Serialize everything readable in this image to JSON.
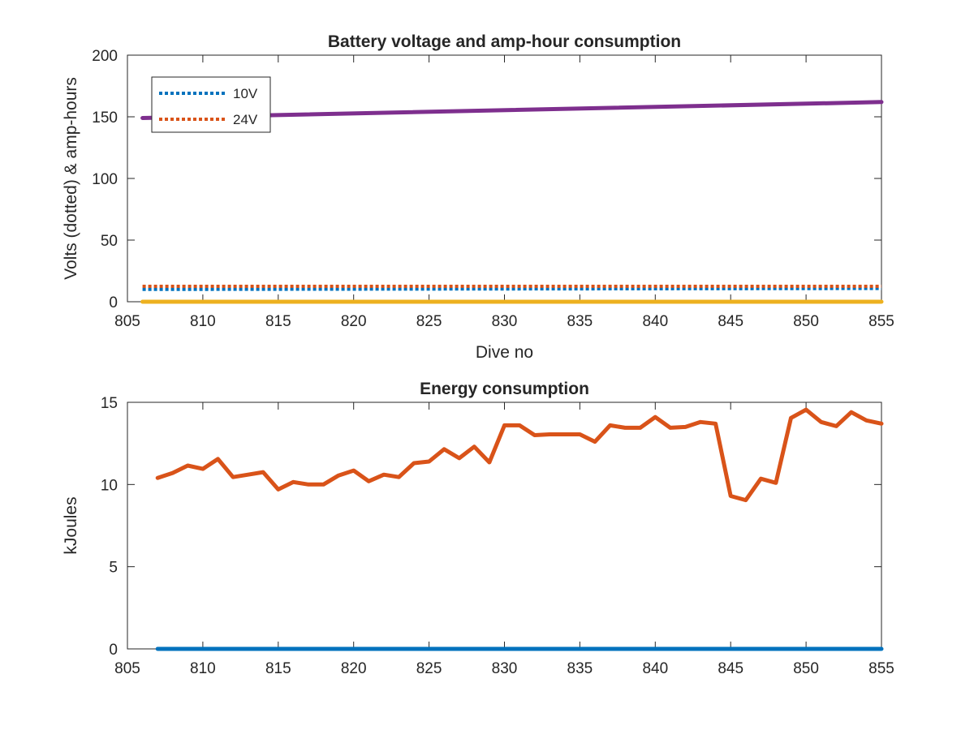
{
  "chart_data": [
    {
      "type": "line",
      "title": "Battery voltage and amp-hour consumption",
      "xlabel": "Dive no",
      "ylabel": "Volts (dotted) & amp-hours",
      "xlim": [
        805,
        855
      ],
      "ylim": [
        0,
        200
      ],
      "xticks": [
        805,
        810,
        815,
        820,
        825,
        830,
        835,
        840,
        845,
        850,
        855
      ],
      "yticks": [
        0,
        50,
        100,
        150,
        200
      ],
      "grid": false,
      "legend": {
        "placement": "top-left",
        "entries": [
          "10V",
          "24V"
        ]
      },
      "series": [
        {
          "name": "10V",
          "style": "dotted",
          "color": "#0072BD",
          "x": [
            806,
            855
          ],
          "y": [
            10.0,
            10.8
          ]
        },
        {
          "name": "24V",
          "style": "dotted",
          "color": "#D95319",
          "x": [
            806,
            855
          ],
          "y": [
            12.5,
            12.5
          ]
        },
        {
          "style": "solid",
          "color": "#7E2F8E",
          "x": [
            806,
            855
          ],
          "y": [
            149,
            162
          ]
        },
        {
          "style": "solid",
          "color": "#EDB120",
          "x": [
            806,
            855
          ],
          "y": [
            0,
            0
          ]
        }
      ]
    },
    {
      "type": "line",
      "title": "Energy consumption",
      "xlabel": "",
      "ylabel": "kJoules",
      "xlim": [
        805,
        855
      ],
      "ylim": [
        0,
        15
      ],
      "xticks": [
        805,
        810,
        815,
        820,
        825,
        830,
        835,
        840,
        845,
        850,
        855
      ],
      "yticks": [
        0,
        5,
        10,
        15
      ],
      "grid": false,
      "series": [
        {
          "style": "solid",
          "color": "#D95319",
          "x": [
            807,
            808,
            809,
            810,
            811,
            812,
            813,
            814,
            815,
            816,
            817,
            818,
            819,
            820,
            821,
            822,
            823,
            824,
            825,
            826,
            827,
            828,
            829,
            830,
            831,
            832,
            833,
            834,
            835,
            836,
            837,
            838,
            839,
            840,
            841,
            842,
            843,
            844,
            845,
            846,
            847,
            848,
            849,
            850,
            851,
            852,
            853,
            854,
            855
          ],
          "y": [
            10.4,
            10.7,
            11.15,
            10.95,
            11.55,
            10.45,
            10.6,
            10.75,
            9.7,
            10.15,
            10.0,
            10.0,
            10.55,
            10.85,
            10.2,
            10.6,
            10.45,
            11.3,
            11.4,
            12.15,
            11.6,
            12.3,
            11.35,
            13.6,
            13.6,
            13.0,
            13.05,
            13.05,
            13.05,
            12.6,
            13.6,
            13.45,
            13.45,
            14.1,
            13.45,
            13.5,
            13.8,
            13.7,
            9.3,
            9.05,
            10.35,
            10.1,
            14.05,
            14.55,
            13.8,
            13.55,
            14.4,
            13.9,
            13.7
          ]
        },
        {
          "style": "solid",
          "color": "#0072BD",
          "x": [
            807,
            855
          ],
          "y": [
            0,
            0
          ]
        }
      ]
    }
  ]
}
